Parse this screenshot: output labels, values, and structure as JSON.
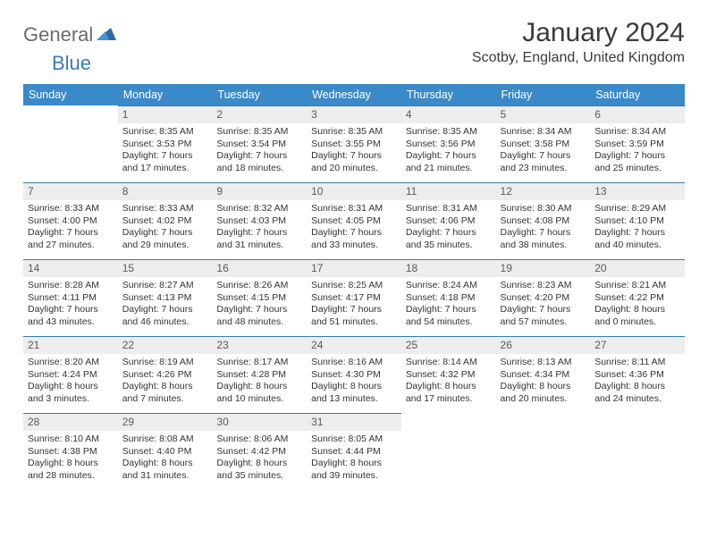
{
  "logo": {
    "text1": "General",
    "text2": "Blue"
  },
  "title": "January 2024",
  "location": "Scotby, England, United Kingdom",
  "colors": {
    "header_bg": "#3a89c9",
    "header_fg": "#ffffff",
    "daynum_bg": "#ededed",
    "daynum_border": "#3a7ab8",
    "logo_gray": "#6b6b6b",
    "logo_blue": "#3a7ab8",
    "text": "#333333",
    "background": "#ffffff"
  },
  "weekdays": [
    "Sunday",
    "Monday",
    "Tuesday",
    "Wednesday",
    "Thursday",
    "Friday",
    "Saturday"
  ],
  "weeks": [
    [
      null,
      {
        "n": "1",
        "sr": "8:35 AM",
        "ss": "3:53 PM",
        "dl": "7 hours and 17 minutes."
      },
      {
        "n": "2",
        "sr": "8:35 AM",
        "ss": "3:54 PM",
        "dl": "7 hours and 18 minutes."
      },
      {
        "n": "3",
        "sr": "8:35 AM",
        "ss": "3:55 PM",
        "dl": "7 hours and 20 minutes."
      },
      {
        "n": "4",
        "sr": "8:35 AM",
        "ss": "3:56 PM",
        "dl": "7 hours and 21 minutes."
      },
      {
        "n": "5",
        "sr": "8:34 AM",
        "ss": "3:58 PM",
        "dl": "7 hours and 23 minutes."
      },
      {
        "n": "6",
        "sr": "8:34 AM",
        "ss": "3:59 PM",
        "dl": "7 hours and 25 minutes."
      }
    ],
    [
      {
        "n": "7",
        "sr": "8:33 AM",
        "ss": "4:00 PM",
        "dl": "7 hours and 27 minutes."
      },
      {
        "n": "8",
        "sr": "8:33 AM",
        "ss": "4:02 PM",
        "dl": "7 hours and 29 minutes."
      },
      {
        "n": "9",
        "sr": "8:32 AM",
        "ss": "4:03 PM",
        "dl": "7 hours and 31 minutes."
      },
      {
        "n": "10",
        "sr": "8:31 AM",
        "ss": "4:05 PM",
        "dl": "7 hours and 33 minutes."
      },
      {
        "n": "11",
        "sr": "8:31 AM",
        "ss": "4:06 PM",
        "dl": "7 hours and 35 minutes."
      },
      {
        "n": "12",
        "sr": "8:30 AM",
        "ss": "4:08 PM",
        "dl": "7 hours and 38 minutes."
      },
      {
        "n": "13",
        "sr": "8:29 AM",
        "ss": "4:10 PM",
        "dl": "7 hours and 40 minutes."
      }
    ],
    [
      {
        "n": "14",
        "sr": "8:28 AM",
        "ss": "4:11 PM",
        "dl": "7 hours and 43 minutes."
      },
      {
        "n": "15",
        "sr": "8:27 AM",
        "ss": "4:13 PM",
        "dl": "7 hours and 46 minutes."
      },
      {
        "n": "16",
        "sr": "8:26 AM",
        "ss": "4:15 PM",
        "dl": "7 hours and 48 minutes."
      },
      {
        "n": "17",
        "sr": "8:25 AM",
        "ss": "4:17 PM",
        "dl": "7 hours and 51 minutes."
      },
      {
        "n": "18",
        "sr": "8:24 AM",
        "ss": "4:18 PM",
        "dl": "7 hours and 54 minutes."
      },
      {
        "n": "19",
        "sr": "8:23 AM",
        "ss": "4:20 PM",
        "dl": "7 hours and 57 minutes."
      },
      {
        "n": "20",
        "sr": "8:21 AM",
        "ss": "4:22 PM",
        "dl": "8 hours and 0 minutes."
      }
    ],
    [
      {
        "n": "21",
        "sr": "8:20 AM",
        "ss": "4:24 PM",
        "dl": "8 hours and 3 minutes."
      },
      {
        "n": "22",
        "sr": "8:19 AM",
        "ss": "4:26 PM",
        "dl": "8 hours and 7 minutes."
      },
      {
        "n": "23",
        "sr": "8:17 AM",
        "ss": "4:28 PM",
        "dl": "8 hours and 10 minutes."
      },
      {
        "n": "24",
        "sr": "8:16 AM",
        "ss": "4:30 PM",
        "dl": "8 hours and 13 minutes."
      },
      {
        "n": "25",
        "sr": "8:14 AM",
        "ss": "4:32 PM",
        "dl": "8 hours and 17 minutes."
      },
      {
        "n": "26",
        "sr": "8:13 AM",
        "ss": "4:34 PM",
        "dl": "8 hours and 20 minutes."
      },
      {
        "n": "27",
        "sr": "8:11 AM",
        "ss": "4:36 PM",
        "dl": "8 hours and 24 minutes."
      }
    ],
    [
      {
        "n": "28",
        "sr": "8:10 AM",
        "ss": "4:38 PM",
        "dl": "8 hours and 28 minutes."
      },
      {
        "n": "29",
        "sr": "8:08 AM",
        "ss": "4:40 PM",
        "dl": "8 hours and 31 minutes."
      },
      {
        "n": "30",
        "sr": "8:06 AM",
        "ss": "4:42 PM",
        "dl": "8 hours and 35 minutes."
      },
      {
        "n": "31",
        "sr": "8:05 AM",
        "ss": "4:44 PM",
        "dl": "8 hours and 39 minutes."
      },
      null,
      null,
      null
    ]
  ],
  "labels": {
    "sunrise": "Sunrise:",
    "sunset": "Sunset:",
    "daylight": "Daylight:"
  }
}
